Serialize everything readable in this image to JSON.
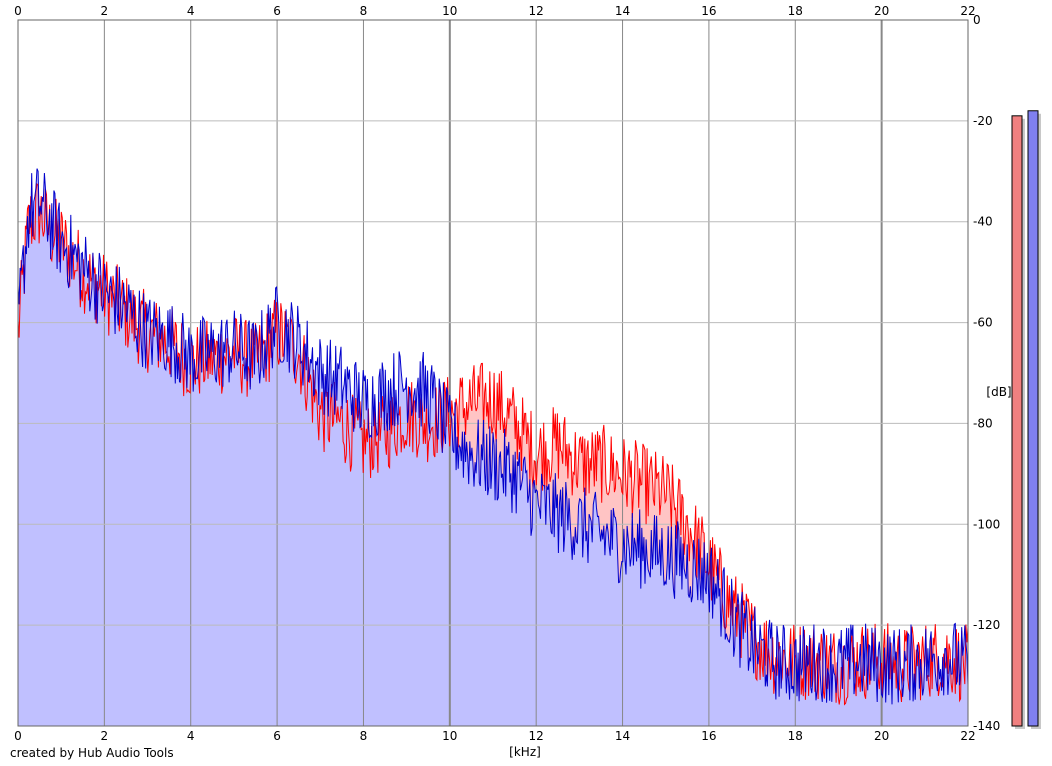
{
  "chart_data": {
    "type": "area",
    "xlabel": "[kHz]",
    "ylabel": "[dB]",
    "xlim": [
      0,
      22
    ],
    "ylim": [
      -140,
      0
    ],
    "xticks": [
      "0",
      "2",
      "4",
      "6",
      "8",
      "10",
      "12",
      "14",
      "16",
      "18",
      "20",
      "22"
    ],
    "yticks": [
      "0",
      "-20",
      "-40",
      "-60",
      "-80",
      "-100",
      "-120",
      "-140"
    ],
    "grid": true,
    "series": [
      {
        "color": "#ff0000",
        "fill": "#ffc4c4",
        "x": [
          0,
          0.25,
          0.5,
          0.75,
          1,
          1.5,
          2,
          2.5,
          3,
          3.5,
          4,
          4.5,
          5,
          5.5,
          6,
          6.5,
          7,
          7.5,
          8,
          8.5,
          9,
          9.5,
          10,
          10.5,
          11,
          11.5,
          12,
          12.5,
          13,
          13.5,
          14,
          14.5,
          15,
          15.5,
          16,
          16.5,
          17,
          17.5,
          18,
          18.5,
          19,
          19.5,
          20,
          20.5,
          21,
          21.5,
          22
        ],
        "values": [
          -62,
          -40,
          -38,
          -42,
          -44,
          -50,
          -54,
          -58,
          -62,
          -64,
          -68,
          -67,
          -66,
          -68,
          -62,
          -66,
          -78,
          -80,
          -84,
          -82,
          -78,
          -80,
          -78,
          -76,
          -75,
          -80,
          -86,
          -84,
          -88,
          -88,
          -90,
          -92,
          -94,
          -100,
          -108,
          -116,
          -122,
          -126,
          -127,
          -127,
          -128,
          -127,
          -127,
          -128,
          -127,
          -126,
          -128
        ]
      },
      {
        "color": "#0000cc",
        "fill": "#c0c0ff",
        "x": [
          0,
          0.25,
          0.5,
          0.75,
          1,
          1.5,
          2,
          2.5,
          3,
          3.5,
          4,
          4.5,
          5,
          5.5,
          6,
          6.5,
          7,
          7.5,
          8,
          8.5,
          9,
          9.5,
          10,
          10.5,
          11,
          11.5,
          12,
          12.5,
          13,
          13.5,
          14,
          14.5,
          15,
          15.5,
          16,
          16.5,
          17,
          17.5,
          18,
          18.5,
          19,
          19.5,
          20,
          20.5,
          21,
          21.5,
          22
        ],
        "values": [
          -60,
          -38,
          -36,
          -40,
          -44,
          -49,
          -54,
          -57,
          -62,
          -63,
          -67,
          -66,
          -65,
          -67,
          -60,
          -64,
          -70,
          -72,
          -76,
          -74,
          -72,
          -74,
          -82,
          -86,
          -88,
          -90,
          -96,
          -98,
          -100,
          -102,
          -104,
          -105,
          -106,
          -108,
          -110,
          -118,
          -124,
          -127,
          -128,
          -127,
          -128,
          -127,
          -128,
          -128,
          -127,
          -126,
          -128
        ]
      }
    ],
    "level_meters": [
      {
        "color": "#f08080",
        "level_db": -19
      },
      {
        "color": "#8080f0",
        "level_db": -18
      }
    ]
  },
  "footer": {
    "credit": "created by Hub Audio Tools"
  }
}
